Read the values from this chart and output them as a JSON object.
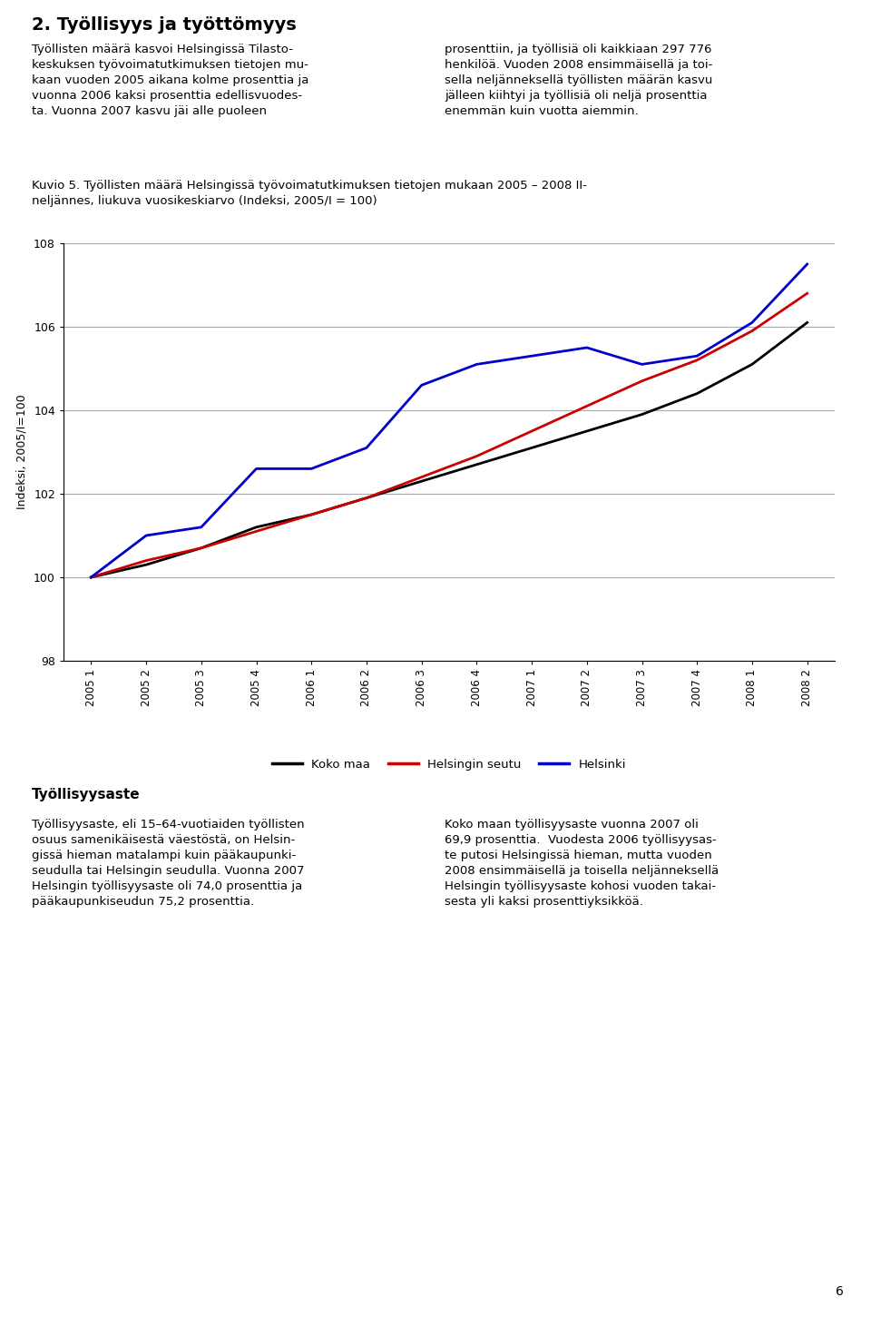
{
  "title_main": "2. Työllisyys ja työttömyys",
  "text_left": "Työllisten määrä kasvoi Helsingissä Tilasto-\nkeskuksen työvoimatutkimuksen tietojen mu-\nkaan vuoden 2005 aikana kolme prosenttia ja\nvuonna 2006 kaksi prosenttia edellisvuodes-\nta. Vuonna 2007 kasvu jäi alle puoleen",
  "text_right": "prosenttiin, ja työllisiä oli kaikkiaan 297 776\nhenkilöä. Vuoden 2008 ensimmäisellä ja toi-\nsella neljänneksellä työllisten määrän kasvu\njälleen kiihtyi ja työllisiä oli neljä prosenttia\nenemmän kuin vuotta aiemmin.",
  "fig_title_line1": "Kuvio 5. Työllisten määrä Helsingissä työvoimatutkimuksen tietojen mukaan 2005 – 2008 II-",
  "fig_title_line2": "neljännes, liukuva vuosikeskiarvo (Indeksi, 2005/I = 100)",
  "ylabel": "Indeksi, 2005/I=100",
  "ylim": [
    98,
    108
  ],
  "yticks": [
    98,
    100,
    102,
    104,
    106,
    108
  ],
  "x_labels": [
    "2005 1",
    "2005 2",
    "2005 3",
    "2005 4",
    "2006 1",
    "2006 2",
    "2006 3",
    "2006 4",
    "2007 1",
    "2007 2",
    "2007 3",
    "2007 4",
    "2008 1",
    "2008 2"
  ],
  "koko_maa": [
    100.0,
    100.3,
    100.7,
    101.2,
    101.5,
    101.9,
    102.3,
    102.7,
    103.1,
    103.5,
    103.9,
    104.4,
    105.1,
    106.1
  ],
  "helsingin_seutu": [
    100.0,
    100.4,
    100.7,
    101.1,
    101.5,
    101.9,
    102.4,
    102.9,
    103.5,
    104.1,
    104.7,
    105.2,
    105.9,
    106.8
  ],
  "helsinki": [
    100.0,
    101.0,
    101.2,
    102.6,
    102.6,
    103.1,
    104.6,
    105.1,
    105.3,
    105.5,
    105.1,
    105.3,
    106.1,
    107.5
  ],
  "colors": {
    "koko_maa": "#000000",
    "helsingin_seutu": "#cc0000",
    "helsinki": "#0000cc"
  },
  "legend_labels": [
    "Koko maa",
    "Helsingin seutu",
    "Helsinki"
  ],
  "section2_title": "Työllisyysaste",
  "section2_text_left": "Työllisyysaste, eli 15–64-vuotiaiden työllisten\nosuus samenikäisestä väestöstä, on Helsin-\ngissä hieman matalampi kuin pääkaupunki-\nseudulla tai Helsingin seudulla. Vuonna 2007\nHelsingin työllisyysaste oli 74,0 prosenttia ja\npääkaupunkiseudun 75,2 prosenttia.",
  "section2_text_right": "Koko maan työllisyysaste vuonna 2007 oli\n69,9 prosenttia.  Vuodesta 2006 työllisyysas-\nte putosi Helsingissä hieman, mutta vuoden\n2008 ensimmäisellä ja toisella neljänneksellä\nHelsingin työllisyysaste kohosi vuoden takai-\nsesta yli kaksi prosenttiyksikköä.",
  "page_number": "6",
  "background_color": "#ffffff",
  "line_width": 2.0
}
